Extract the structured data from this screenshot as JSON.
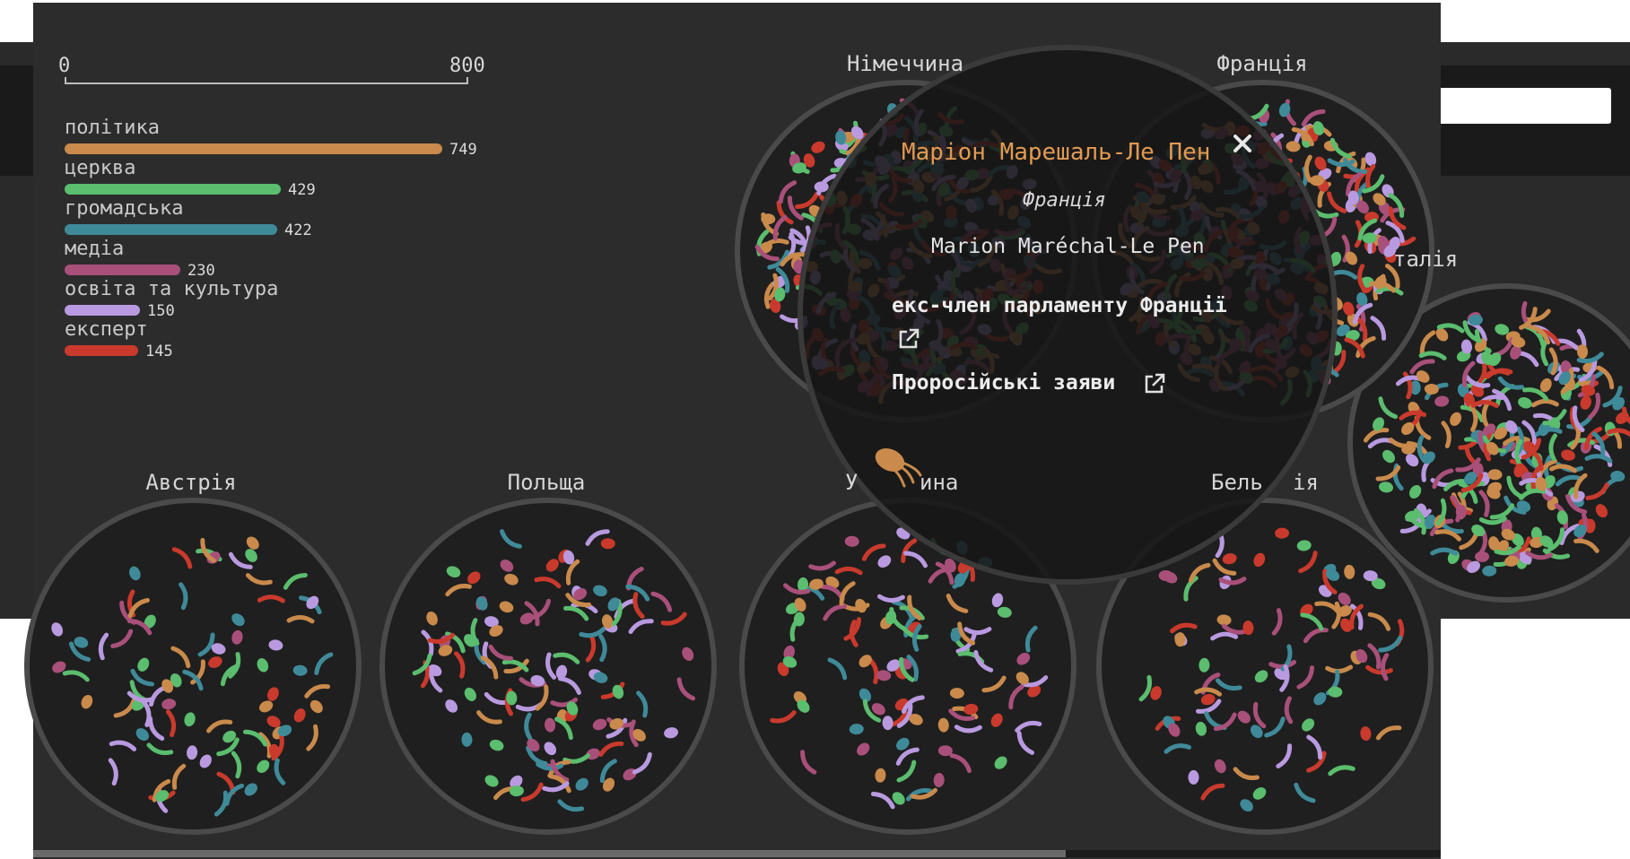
{
  "axis": {
    "min_label": "0",
    "max_label": "800",
    "min": 0,
    "max": 800
  },
  "categories": [
    {
      "label": "політика",
      "value": 749,
      "value_label": "749",
      "color": "#c98a4b"
    },
    {
      "label": "церква",
      "value": 429,
      "value_label": "429",
      "color": "#5bbd6e"
    },
    {
      "label": "громадська",
      "value": 422,
      "value_label": "422",
      "color": "#3f8a99"
    },
    {
      "label": "медіа",
      "value": 230,
      "value_label": "230",
      "color": "#a9507a"
    },
    {
      "label": "освіта та культура",
      "value": 150,
      "value_label": "150",
      "color": "#b99ae0"
    },
    {
      "label": "експерт",
      "value": 145,
      "value_label": "145",
      "color": "#c93a2c"
    }
  ],
  "countries": {
    "germany": "Німеччина",
    "france": "Франція",
    "italy_partial": "талія",
    "austria": "Австрія",
    "poland": "Польща",
    "hungary_partial_a": "У",
    "hungary_partial_b": "ина",
    "belgium_partial_a": "Бель",
    "belgium_partial_b": "ія"
  },
  "popup": {
    "name": "Маріон Марешаль-Ле Пен",
    "country": "Франція",
    "latin_name": "Marion Maréchal-Le Pen",
    "role": "екс-член парламенту Франції",
    "claims_link": "Проросійські заяви",
    "name_color": "#e29a52",
    "icons": {
      "close": "close-icon",
      "external": "external-link-icon",
      "creature": "bacterium-icon"
    }
  }
}
